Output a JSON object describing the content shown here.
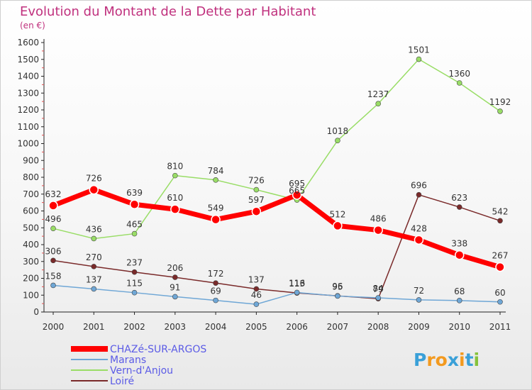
{
  "chart_data": {
    "type": "line",
    "title": "Evolution du Montant de la Dette par Habitant",
    "subtitle": "(en €)",
    "x": [
      "2000",
      "2001",
      "2002",
      "2003",
      "2004",
      "2005",
      "2006",
      "2007",
      "2008",
      "2009",
      "2010",
      "2011"
    ],
    "ylim": [
      0,
      1600
    ],
    "yticks": [
      0,
      100,
      200,
      300,
      400,
      500,
      600,
      700,
      800,
      900,
      1000,
      1100,
      1200,
      1300,
      1400,
      1500,
      1600
    ],
    "grid": false,
    "legend_position": "bottom-left",
    "series": [
      {
        "name": "CHAZé-SUR-ARGOS",
        "color": "#ff0000",
        "values": [
          632,
          726,
          639,
          610,
          549,
          597,
          695,
          512,
          486,
          428,
          338,
          267
        ]
      },
      {
        "name": "Marans",
        "color": "#6fa7d6",
        "values": [
          158,
          137,
          115,
          91,
          69,
          46,
          116,
          95,
          84,
          72,
          68,
          60
        ]
      },
      {
        "name": "Vern-d'Anjou",
        "color": "#99dd66",
        "values": [
          496,
          436,
          465,
          810,
          784,
          726,
          665,
          1018,
          1237,
          1501,
          1360,
          1192
        ]
      },
      {
        "name": "Loiré",
        "color": "#7a2a2a",
        "values": [
          306,
          270,
          237,
          206,
          172,
          137,
          113,
          96,
          79,
          696,
          623,
          542
        ]
      }
    ]
  },
  "logo": {
    "text": "Proxiti",
    "letters": [
      "P",
      "r",
      "o",
      "x",
      "i",
      "t",
      "i"
    ],
    "colors": [
      "#3aa0d8",
      "#f39a1f",
      "#f39a1f",
      "#3aa0d8",
      "#f39a1f",
      "#3aa0d8",
      "#86c23b"
    ]
  }
}
